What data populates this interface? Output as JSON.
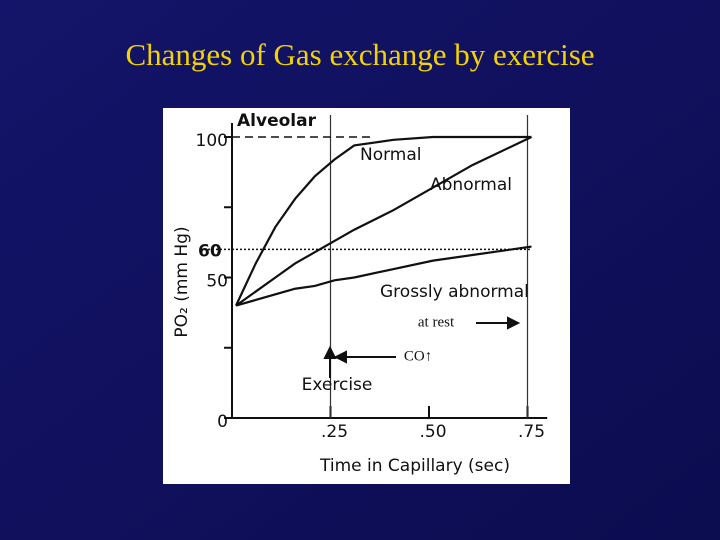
{
  "slide_title": "Changes of Gas exchange by exercise",
  "chart_data": {
    "type": "line",
    "ylabel": "PO₂ (mm Hg)",
    "xlabel": "Time in Capillary (sec)",
    "x": [
      0,
      0.05,
      0.1,
      0.15,
      0.2,
      0.25,
      0.3,
      0.4,
      0.5,
      0.6,
      0.75
    ],
    "series": [
      {
        "name": "Normal",
        "color": "#111111",
        "values": [
          40,
          55,
          68,
          78,
          86,
          92,
          97,
          99,
          100,
          100,
          100
        ]
      },
      {
        "name": "Abnormal",
        "color": "#111111",
        "values": [
          40,
          45,
          50,
          55,
          59,
          63,
          67,
          74,
          82,
          90,
          100
        ]
      },
      {
        "name": "Grossly abnormal",
        "color": "#111111",
        "values": [
          40,
          42,
          44,
          46,
          47,
          49,
          50,
          53,
          56,
          58,
          61
        ]
      }
    ],
    "xlim": [
      0,
      0.8
    ],
    "ylim": [
      0,
      105
    ],
    "xticks": [
      {
        "value": 0.25,
        "label": ".25"
      },
      {
        "value": 0.5,
        "label": ".50"
      },
      {
        "value": 0.75,
        "label": ".75"
      }
    ],
    "yticks": [
      0,
      50,
      100
    ],
    "yminor": [
      25,
      75
    ],
    "vlines": [
      0.25,
      0.75
    ],
    "reference_lines": [
      {
        "value": 100,
        "label": "Alveolar",
        "style": "dashed"
      },
      {
        "value": 60,
        "label": "60",
        "style": "dotted"
      }
    ],
    "annotations": [
      "at rest",
      "CO↑",
      "Exercise"
    ]
  }
}
